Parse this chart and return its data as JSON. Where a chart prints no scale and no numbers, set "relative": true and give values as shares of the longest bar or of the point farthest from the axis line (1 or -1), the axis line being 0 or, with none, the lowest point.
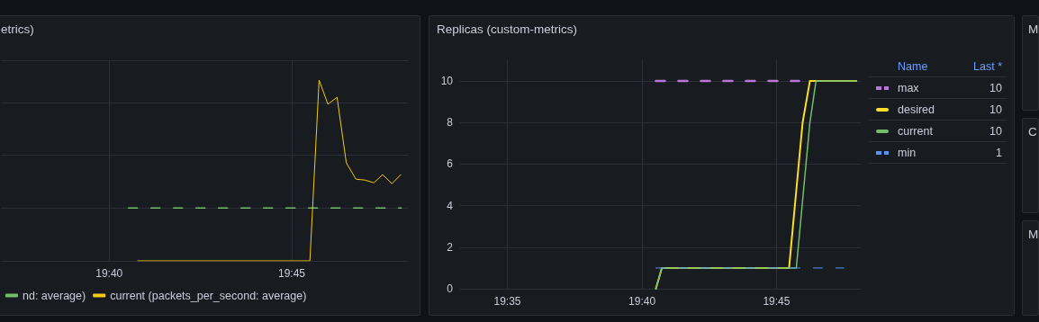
{
  "chart_data": [
    {
      "type": "line",
      "title": "etrics)",
      "relative": true,
      "grid": true,
      "legend": "bottom",
      "marker": "none",
      "xlim": [
        19.6173,
        19.803
      ],
      "xticks": [
        {
          "value": 19.6667,
          "label": "19:40"
        },
        {
          "value": 19.75,
          "label": "19:45"
        }
      ],
      "series": [
        {
          "name": "nd: average)",
          "color": "#73bf69",
          "line_style": "dashed",
          "x": [
            19.6755,
            19.8
          ],
          "values": [
            0.292,
            0.292
          ]
        },
        {
          "name": "current (packets_per_second: average)",
          "color": "#f2cc0c",
          "line_style": "solid",
          "x": [
            19.6797,
            19.7583,
            19.7625,
            19.7665,
            19.7707,
            19.7749,
            19.7793,
            19.7834,
            19.7875,
            19.7915,
            19.7957,
            19.7998
          ],
          "values": [
            0,
            0,
            1,
            0.867,
            0.905,
            0.543,
            0.452,
            0.447,
            0.432,
            0.477,
            0.427,
            0.477
          ]
        }
      ]
    },
    {
      "type": "line",
      "title": "Replicas (custom-metrics)",
      "grid": true,
      "legend": "right",
      "legend_title": "Name",
      "annotations": [
        "Last *",
        "10",
        "10",
        "10",
        "1"
      ],
      "marker": "none",
      "xlim": [
        19.554,
        19.8022
      ],
      "xticks": [
        {
          "value": 19.5833,
          "label": "19:35"
        },
        {
          "value": 19.6667,
          "label": "19:40"
        },
        {
          "value": 19.75,
          "label": "19:45"
        }
      ],
      "ylim": [
        0,
        11
      ],
      "yticks": [
        0,
        2,
        4,
        6,
        8,
        10
      ],
      "series": [
        {
          "name": "max",
          "color": "#b877d9",
          "line_style": "dashed",
          "x": [
            19.6753,
            19.764
          ],
          "values": [
            10,
            10
          ]
        },
        {
          "name": "desired",
          "color": "#fade2a",
          "line_style": "solid",
          "x": [
            19.6753,
            19.679,
            19.7578,
            19.7662,
            19.7707,
            19.7995
          ],
          "values": [
            0,
            1,
            1,
            8,
            10,
            10
          ]
        },
        {
          "name": "current",
          "color": "#73bf69",
          "line_style": "solid",
          "x": [
            19.6753,
            19.679,
            19.7623,
            19.7707,
            19.7745,
            19.7995
          ],
          "values": [
            0,
            1,
            1,
            8,
            10,
            10
          ]
        },
        {
          "name": "min",
          "color": "#5794f2",
          "line_style": "dashed",
          "x": [
            19.6753,
            19.7917
          ],
          "values": [
            1,
            1
          ]
        }
      ]
    },
    {
      "type": "other",
      "title": "M"
    },
    {
      "type": "other",
      "title": "C"
    },
    {
      "type": "other",
      "title": "M"
    }
  ]
}
